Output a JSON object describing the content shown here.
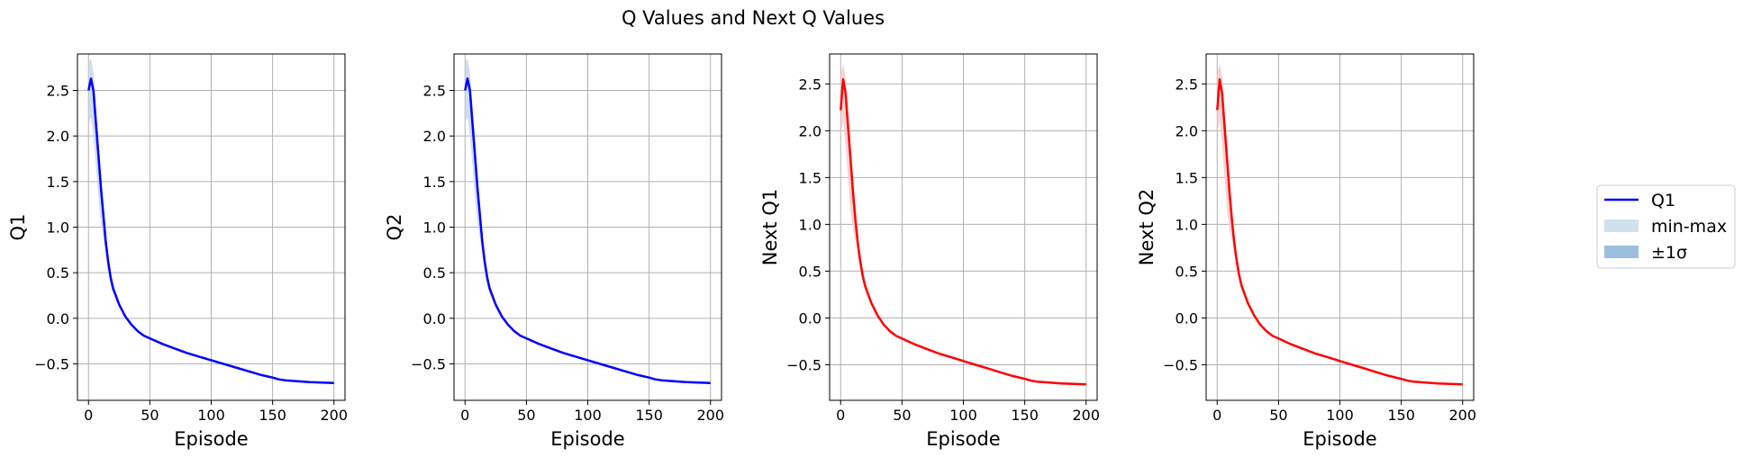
{
  "figure": {
    "title": "Q Values and Next Q Values"
  },
  "legend": {
    "placement": "right",
    "entries": [
      {
        "label": "Q1",
        "kind": "line",
        "color": "#0000ff"
      },
      {
        "label": "min-max",
        "kind": "patch",
        "color": "#cfe0ee"
      },
      {
        "label": "±1σ",
        "kind": "patch",
        "color": "#9bbfdc"
      }
    ]
  },
  "chart_data": [
    {
      "type": "line",
      "ylabel": "Q1",
      "xlabel": "Episode",
      "color": "#0000ff",
      "band_color": "#c8d7ec",
      "xlim": [
        -9,
        209
      ],
      "ylim": [
        -0.9,
        2.9
      ],
      "xticks": [
        0,
        50,
        100,
        150,
        200
      ],
      "yticks": [
        -0.5,
        0.0,
        0.5,
        1.0,
        1.5,
        2.0,
        2.5
      ],
      "ytick_labels": [
        "−0.5",
        "0.0",
        "0.5",
        "1.0",
        "1.5",
        "2.0",
        "2.5"
      ],
      "grid": true,
      "series": [
        {
          "x": [
            0,
            2,
            4,
            6,
            8,
            10,
            12,
            14,
            16,
            18,
            20,
            25,
            30,
            35,
            40,
            45,
            50,
            60,
            70,
            80,
            90,
            100,
            110,
            120,
            130,
            140,
            150,
            155,
            160,
            170,
            180,
            190,
            200
          ],
          "values": [
            2.5,
            2.63,
            2.5,
            2.15,
            1.8,
            1.45,
            1.15,
            0.85,
            0.62,
            0.45,
            0.33,
            0.15,
            0.02,
            -0.07,
            -0.14,
            -0.19,
            -0.22,
            -0.28,
            -0.33,
            -0.38,
            -0.42,
            -0.46,
            -0.5,
            -0.54,
            -0.58,
            -0.62,
            -0.65,
            -0.67,
            -0.68,
            -0.69,
            -0.7,
            -0.705,
            -0.71
          ],
          "min": [
            2.15,
            2.2,
            2.0,
            1.7,
            1.35,
            1.05,
            0.9,
            0.7,
            0.5,
            0.36,
            0.28,
            0.12,
            0.0,
            -0.08,
            -0.15,
            -0.2,
            -0.23,
            -0.29,
            -0.34,
            -0.39,
            -0.43,
            -0.47,
            -0.51,
            -0.55,
            -0.59,
            -0.63,
            -0.66,
            -0.68,
            -0.69,
            -0.7,
            -0.71,
            -0.715,
            -0.72
          ],
          "max": [
            2.8,
            2.85,
            2.7,
            2.35,
            2.0,
            1.6,
            1.25,
            0.95,
            0.7,
            0.52,
            0.38,
            0.18,
            0.04,
            -0.06,
            -0.13,
            -0.18,
            -0.21,
            -0.27,
            -0.32,
            -0.37,
            -0.41,
            -0.45,
            -0.49,
            -0.53,
            -0.57,
            -0.61,
            -0.64,
            -0.66,
            -0.67,
            -0.68,
            -0.69,
            -0.695,
            -0.7
          ]
        }
      ]
    },
    {
      "type": "line",
      "ylabel": "Q2",
      "xlabel": "Episode",
      "color": "#0000ff",
      "band_color": "#c8d7ec",
      "xlim": [
        -9,
        209
      ],
      "ylim": [
        -0.9,
        2.9
      ],
      "xticks": [
        0,
        50,
        100,
        150,
        200
      ],
      "yticks": [
        -0.5,
        0.0,
        0.5,
        1.0,
        1.5,
        2.0,
        2.5
      ],
      "ytick_labels": [
        "−0.5",
        "0.0",
        "0.5",
        "1.0",
        "1.5",
        "2.0",
        "2.5"
      ],
      "grid": true,
      "series": [
        {
          "x": [
            0,
            2,
            4,
            6,
            8,
            10,
            12,
            14,
            16,
            18,
            20,
            25,
            30,
            35,
            40,
            45,
            50,
            60,
            70,
            80,
            90,
            100,
            110,
            120,
            130,
            140,
            150,
            155,
            160,
            170,
            180,
            190,
            200
          ],
          "values": [
            2.5,
            2.63,
            2.5,
            2.15,
            1.8,
            1.45,
            1.15,
            0.85,
            0.62,
            0.45,
            0.33,
            0.15,
            0.02,
            -0.07,
            -0.14,
            -0.19,
            -0.22,
            -0.28,
            -0.33,
            -0.38,
            -0.42,
            -0.46,
            -0.5,
            -0.54,
            -0.58,
            -0.62,
            -0.65,
            -0.67,
            -0.68,
            -0.69,
            -0.7,
            -0.705,
            -0.71
          ],
          "min": [
            2.15,
            2.2,
            2.0,
            1.7,
            1.35,
            1.05,
            0.9,
            0.7,
            0.5,
            0.36,
            0.28,
            0.12,
            0.0,
            -0.08,
            -0.15,
            -0.2,
            -0.23,
            -0.29,
            -0.34,
            -0.39,
            -0.43,
            -0.47,
            -0.51,
            -0.55,
            -0.59,
            -0.63,
            -0.66,
            -0.68,
            -0.69,
            -0.7,
            -0.71,
            -0.715,
            -0.72
          ],
          "max": [
            2.8,
            2.85,
            2.7,
            2.35,
            2.0,
            1.6,
            1.25,
            0.95,
            0.7,
            0.52,
            0.38,
            0.18,
            0.04,
            -0.06,
            -0.13,
            -0.18,
            -0.21,
            -0.27,
            -0.32,
            -0.37,
            -0.41,
            -0.45,
            -0.49,
            -0.53,
            -0.57,
            -0.61,
            -0.64,
            -0.66,
            -0.67,
            -0.68,
            -0.69,
            -0.695,
            -0.7
          ]
        }
      ]
    },
    {
      "type": "line",
      "ylabel": "Next Q1",
      "xlabel": "Episode",
      "color": "#ff0000",
      "band_color": "#f3cccc",
      "xlim": [
        -9,
        209
      ],
      "ylim": [
        -0.88,
        2.82
      ],
      "xticks": [
        0,
        50,
        100,
        150,
        200
      ],
      "yticks": [
        -0.5,
        0.0,
        0.5,
        1.0,
        1.5,
        2.0,
        2.5
      ],
      "ytick_labels": [
        "−0.5",
        "0.0",
        "0.5",
        "1.0",
        "1.5",
        "2.0",
        "2.5"
      ],
      "grid": true,
      "series": [
        {
          "x": [
            0,
            2,
            4,
            6,
            8,
            10,
            12,
            14,
            16,
            18,
            20,
            25,
            30,
            35,
            40,
            45,
            50,
            60,
            70,
            80,
            90,
            100,
            110,
            120,
            130,
            140,
            150,
            155,
            160,
            170,
            180,
            190,
            200
          ],
          "values": [
            2.22,
            2.55,
            2.4,
            2.05,
            1.7,
            1.35,
            1.05,
            0.8,
            0.6,
            0.45,
            0.34,
            0.16,
            0.03,
            -0.07,
            -0.14,
            -0.19,
            -0.22,
            -0.28,
            -0.33,
            -0.38,
            -0.42,
            -0.46,
            -0.5,
            -0.54,
            -0.58,
            -0.62,
            -0.65,
            -0.67,
            -0.68,
            -0.69,
            -0.7,
            -0.705,
            -0.71
          ],
          "min": [
            1.95,
            2.1,
            1.85,
            1.5,
            1.15,
            0.95,
            0.85,
            0.68,
            0.5,
            0.38,
            0.3,
            0.13,
            0.01,
            -0.08,
            -0.15,
            -0.2,
            -0.23,
            -0.29,
            -0.34,
            -0.39,
            -0.43,
            -0.47,
            -0.51,
            -0.55,
            -0.59,
            -0.63,
            -0.66,
            -0.68,
            -0.69,
            -0.7,
            -0.71,
            -0.715,
            -0.72
          ],
          "max": [
            2.6,
            2.72,
            2.58,
            2.25,
            1.9,
            1.5,
            1.15,
            0.88,
            0.67,
            0.5,
            0.38,
            0.19,
            0.05,
            -0.06,
            -0.13,
            -0.18,
            -0.21,
            -0.27,
            -0.32,
            -0.37,
            -0.41,
            -0.45,
            -0.49,
            -0.53,
            -0.57,
            -0.61,
            -0.64,
            -0.66,
            -0.67,
            -0.68,
            -0.69,
            -0.695,
            -0.7
          ]
        }
      ]
    },
    {
      "type": "line",
      "ylabel": "Next Q2",
      "xlabel": "Episode",
      "color": "#ff0000",
      "band_color": "#f3cccc",
      "xlim": [
        -9,
        209
      ],
      "ylim": [
        -0.88,
        2.82
      ],
      "xticks": [
        0,
        50,
        100,
        150,
        200
      ],
      "yticks": [
        -0.5,
        0.0,
        0.5,
        1.0,
        1.5,
        2.0,
        2.5
      ],
      "ytick_labels": [
        "−0.5",
        "0.0",
        "0.5",
        "1.0",
        "1.5",
        "2.0",
        "2.5"
      ],
      "grid": true,
      "series": [
        {
          "x": [
            0,
            2,
            4,
            6,
            8,
            10,
            12,
            14,
            16,
            18,
            20,
            25,
            30,
            35,
            40,
            45,
            50,
            60,
            70,
            80,
            90,
            100,
            110,
            120,
            130,
            140,
            150,
            155,
            160,
            170,
            180,
            190,
            200
          ],
          "values": [
            2.22,
            2.55,
            2.4,
            2.05,
            1.7,
            1.35,
            1.05,
            0.8,
            0.6,
            0.45,
            0.34,
            0.16,
            0.03,
            -0.07,
            -0.14,
            -0.19,
            -0.22,
            -0.28,
            -0.33,
            -0.38,
            -0.42,
            -0.46,
            -0.5,
            -0.54,
            -0.58,
            -0.62,
            -0.65,
            -0.67,
            -0.68,
            -0.69,
            -0.7,
            -0.705,
            -0.71
          ],
          "min": [
            1.95,
            2.1,
            1.85,
            1.5,
            1.15,
            0.95,
            0.85,
            0.68,
            0.5,
            0.38,
            0.3,
            0.13,
            0.01,
            -0.08,
            -0.15,
            -0.2,
            -0.23,
            -0.29,
            -0.34,
            -0.39,
            -0.43,
            -0.47,
            -0.51,
            -0.55,
            -0.59,
            -0.63,
            -0.66,
            -0.68,
            -0.69,
            -0.7,
            -0.71,
            -0.715,
            -0.72
          ],
          "max": [
            2.6,
            2.72,
            2.58,
            2.25,
            1.9,
            1.5,
            1.15,
            0.88,
            0.67,
            0.5,
            0.38,
            0.19,
            0.05,
            -0.06,
            -0.13,
            -0.18,
            -0.21,
            -0.27,
            -0.32,
            -0.37,
            -0.41,
            -0.45,
            -0.49,
            -0.53,
            -0.57,
            -0.61,
            -0.64,
            -0.66,
            -0.67,
            -0.68,
            -0.69,
            -0.695,
            -0.7
          ]
        }
      ]
    }
  ]
}
